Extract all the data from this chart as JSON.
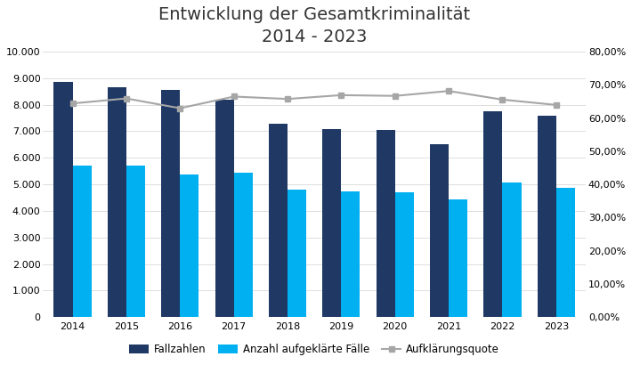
{
  "title": "Entwicklung der Gesamtkriminalität\n2014 - 2023",
  "years": [
    2014,
    2015,
    2016,
    2017,
    2018,
    2019,
    2020,
    2021,
    2022,
    2023
  ],
  "fallzahlen": [
    8850,
    8650,
    8550,
    8200,
    7300,
    7100,
    7050,
    6500,
    7750,
    7600
  ],
  "aufgeklaerte": [
    5700,
    5700,
    5380,
    5450,
    4800,
    4750,
    4700,
    4430,
    5080,
    4860
  ],
  "aufklaerungsquote": [
    0.644,
    0.659,
    0.6295,
    0.6647,
    0.6575,
    0.669,
    0.6667,
    0.6815,
    0.6555,
    0.6395
  ],
  "bar_color_fall": "#1F3864",
  "bar_color_aufgeklaert": "#00B0F0",
  "line_color": "#A6A6A6",
  "background_color": "#FFFFFF",
  "ylim_left": [
    0,
    10000
  ],
  "ylim_right": [
    0,
    0.8
  ],
  "yticks_left": [
    0,
    1000,
    2000,
    3000,
    4000,
    5000,
    6000,
    7000,
    8000,
    9000,
    10000
  ],
  "yticks_right": [
    0.0,
    0.1,
    0.2,
    0.3,
    0.4,
    0.5,
    0.6,
    0.7,
    0.8
  ],
  "legend_labels": [
    "Fallzahlen",
    "Anzahl aufgeklärte Fälle",
    "Aufklärungsquote"
  ],
  "title_fontsize": 14,
  "tick_fontsize": 8,
  "legend_fontsize": 8.5,
  "bar_width": 0.35
}
